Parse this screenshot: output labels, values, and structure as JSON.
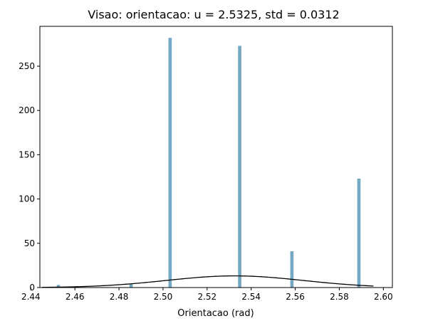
{
  "chart_data": {
    "type": "bar",
    "title": "Visao: orientacao: u = 2.5325,  std = 0.0312",
    "xlabel": "Orientacao (rad)",
    "ylabel": "",
    "xlim": [
      2.4441,
      2.6041
    ],
    "ylim": [
      0,
      295
    ],
    "xticks": [
      "2.44",
      "2.46",
      "2.48",
      "2.50",
      "2.52",
      "2.54",
      "2.56",
      "2.58",
      "2.60"
    ],
    "yticks": [
      "0",
      "50",
      "100",
      "150",
      "200",
      "250"
    ],
    "grid": false,
    "bar_color": "#75a9c3",
    "bar_width": 0.0015,
    "bars": [
      {
        "x": 2.4525,
        "value": 3
      },
      {
        "x": 2.4855,
        "value": 4
      },
      {
        "x": 2.5032,
        "value": 282
      },
      {
        "x": 2.5348,
        "value": 273
      },
      {
        "x": 2.5585,
        "value": 41
      },
      {
        "x": 2.5889,
        "value": 123
      }
    ],
    "curve": {
      "type": "normal",
      "mean": 2.5325,
      "std": 0.0312,
      "scale": 1.03,
      "x_range": [
        2.445,
        2.5955
      ],
      "color": "#000000"
    }
  }
}
